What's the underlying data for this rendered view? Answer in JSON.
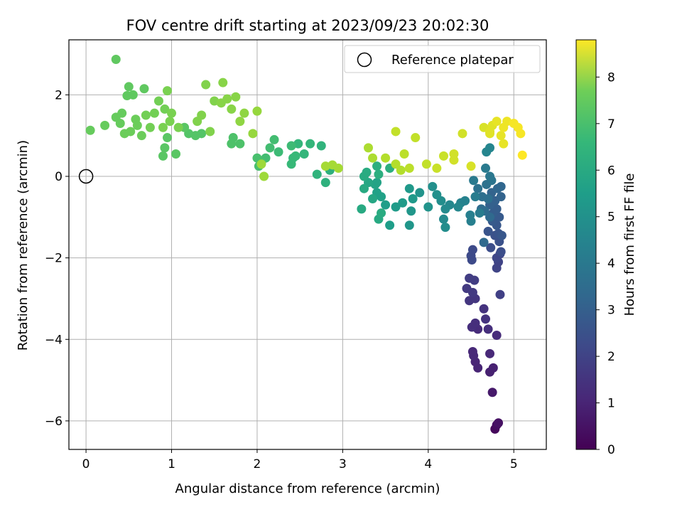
{
  "chart_data": {
    "type": "scatter",
    "title": "FOV centre drift starting at 2023/09/23 20:02:30",
    "xlabel": "Angular distance from reference (arcmin)",
    "ylabel": "Rotation from reference (arcmin)",
    "xlim": [
      -0.2,
      5.38
    ],
    "ylim": [
      -6.7,
      3.35
    ],
    "xticks": [
      0,
      1,
      2,
      3,
      4,
      5
    ],
    "yticks": [
      -6,
      -4,
      -2,
      0,
      2
    ],
    "grid": true,
    "legend": {
      "position": "top-right",
      "entries": [
        "Reference platepar"
      ]
    },
    "reference_point": {
      "x": 0,
      "y": 0,
      "marker": "open-circle"
    },
    "colorbar": {
      "label": "Hours from first FF file",
      "range": [
        0,
        8.8
      ],
      "ticks": [
        0,
        1,
        2,
        3,
        4,
        5,
        6,
        7,
        8
      ],
      "colormap": "viridis"
    },
    "series": [
      {
        "hours_range": [
          0.2,
          2.2
        ],
        "points": [
          [
            4.78,
            -6.2,
            0.2
          ],
          [
            4.8,
            -6.1,
            0.3
          ],
          [
            4.82,
            -6.05,
            0.4
          ],
          [
            4.75,
            -5.3,
            0.6
          ],
          [
            4.72,
            -4.8,
            0.8
          ],
          [
            4.76,
            -4.7,
            0.8
          ],
          [
            4.58,
            -4.7,
            0.9
          ],
          [
            4.55,
            -4.55,
            0.9
          ],
          [
            4.53,
            -4.4,
            1.0
          ],
          [
            4.52,
            -4.3,
            1.0
          ],
          [
            4.72,
            -4.35,
            1.0
          ],
          [
            4.8,
            -3.9,
            1.1
          ],
          [
            4.58,
            -3.75,
            1.1
          ],
          [
            4.7,
            -3.75,
            1.2
          ],
          [
            4.51,
            -3.7,
            1.2
          ],
          [
            4.55,
            -3.6,
            1.2
          ],
          [
            4.67,
            -3.5,
            1.3
          ],
          [
            4.65,
            -3.25,
            1.3
          ],
          [
            4.48,
            -3.05,
            1.4
          ],
          [
            4.55,
            -3.0,
            1.4
          ],
          [
            4.52,
            -2.85,
            1.5
          ],
          [
            4.45,
            -2.75,
            1.5
          ],
          [
            4.48,
            -2.5,
            1.6
          ],
          [
            4.54,
            -2.55,
            1.6
          ],
          [
            4.84,
            -2.9,
            1.7
          ],
          [
            4.8,
            -2.25,
            1.8
          ],
          [
            4.82,
            -2.1,
            1.8
          ],
          [
            4.8,
            -2.0,
            1.9
          ],
          [
            4.84,
            -1.9,
            1.9
          ],
          [
            4.5,
            -1.95,
            2.0
          ],
          [
            4.51,
            -2.05,
            2.0
          ],
          [
            4.52,
            -1.8,
            2.0
          ],
          [
            4.85,
            -1.85,
            2.1
          ],
          [
            4.73,
            -1.75,
            2.1
          ],
          [
            4.83,
            -1.6,
            2.2
          ]
        ]
      },
      {
        "hours_range": [
          2.0,
          4.0
        ],
        "points": [
          [
            4.78,
            -1.45,
            2.2
          ],
          [
            4.82,
            -1.4,
            2.3
          ],
          [
            4.7,
            -1.35,
            2.3
          ],
          [
            4.86,
            -1.45,
            2.4
          ],
          [
            4.8,
            -1.2,
            2.4
          ],
          [
            4.75,
            -1.1,
            2.5
          ],
          [
            4.83,
            -1.0,
            2.5
          ],
          [
            4.76,
            -0.9,
            2.6
          ],
          [
            4.8,
            -0.8,
            2.6
          ],
          [
            4.72,
            -0.7,
            2.7
          ],
          [
            4.78,
            -0.6,
            2.7
          ],
          [
            4.85,
            -0.5,
            2.8
          ],
          [
            4.74,
            -0.4,
            2.8
          ],
          [
            4.81,
            -0.3,
            2.9
          ],
          [
            4.85,
            -0.25,
            2.9
          ],
          [
            4.65,
            -1.62,
            3.0
          ],
          [
            4.72,
            -1.0,
            3.0
          ],
          [
            4.66,
            -0.85,
            3.1
          ],
          [
            4.62,
            -0.8,
            3.1
          ],
          [
            4.7,
            -0.55,
            3.2
          ],
          [
            4.63,
            -0.5,
            3.2
          ],
          [
            4.58,
            -0.3,
            3.3
          ],
          [
            4.68,
            -0.2,
            3.3
          ],
          [
            4.74,
            -0.1,
            3.4
          ],
          [
            4.72,
            0.0,
            3.5
          ],
          [
            4.67,
            0.2,
            3.6
          ],
          [
            4.53,
            -0.1,
            3.6
          ],
          [
            4.55,
            -0.5,
            3.7
          ],
          [
            4.6,
            -0.9,
            3.7
          ],
          [
            4.5,
            -1.1,
            3.8
          ],
          [
            4.49,
            -0.95,
            3.8
          ],
          [
            4.43,
            -0.6,
            3.9
          ],
          [
            4.38,
            -0.65,
            3.9
          ],
          [
            4.68,
            0.6,
            4.0
          ],
          [
            4.72,
            0.7,
            4.0
          ]
        ]
      },
      {
        "hours_range": [
          4.0,
          5.5
        ],
        "points": [
          [
            4.35,
            -0.75,
            4.1
          ],
          [
            4.25,
            -0.7,
            4.1
          ],
          [
            4.2,
            -0.8,
            4.2
          ],
          [
            4.18,
            -1.05,
            4.2
          ],
          [
            4.2,
            -1.25,
            4.3
          ],
          [
            4.15,
            -0.6,
            4.3
          ],
          [
            4.1,
            -0.45,
            4.4
          ],
          [
            4.05,
            -0.25,
            4.4
          ],
          [
            4.0,
            -0.75,
            4.5
          ],
          [
            3.9,
            -0.4,
            4.5
          ],
          [
            3.8,
            -0.85,
            4.6
          ],
          [
            3.78,
            -1.2,
            4.6
          ],
          [
            3.82,
            -0.55,
            4.7
          ],
          [
            3.78,
            -0.3,
            4.7
          ],
          [
            3.7,
            -0.65,
            4.8
          ],
          [
            3.62,
            -0.75,
            4.8
          ],
          [
            3.55,
            -1.2,
            4.9
          ],
          [
            3.5,
            -0.7,
            4.9
          ],
          [
            3.45,
            -0.5,
            5.0
          ],
          [
            3.4,
            -0.4,
            5.0
          ],
          [
            3.4,
            -0.15,
            5.1
          ],
          [
            3.38,
            -0.2,
            5.1
          ],
          [
            3.35,
            -0.55,
            5.2
          ],
          [
            3.3,
            -0.15,
            5.2
          ],
          [
            3.25,
            -0.3,
            5.3
          ],
          [
            3.22,
            -0.8,
            5.3
          ],
          [
            3.42,
            -1.05,
            5.3
          ],
          [
            3.45,
            -0.9,
            5.4
          ],
          [
            3.25,
            0.0,
            5.4
          ],
          [
            3.28,
            0.1,
            5.4
          ],
          [
            3.42,
            0.05,
            5.5
          ],
          [
            3.4,
            0.25,
            5.5
          ],
          [
            3.55,
            0.2,
            5.5
          ]
        ]
      },
      {
        "hours_range": [
          5.5,
          6.5
        ],
        "points": [
          [
            2.85,
            0.15,
            5.6
          ],
          [
            2.8,
            -0.15,
            5.6
          ],
          [
            2.7,
            0.05,
            5.7
          ],
          [
            2.75,
            0.75,
            5.7
          ],
          [
            2.62,
            0.8,
            5.8
          ],
          [
            2.55,
            0.55,
            5.8
          ],
          [
            2.48,
            0.8,
            5.8
          ],
          [
            2.45,
            0.5,
            5.9
          ],
          [
            2.4,
            0.3,
            5.9
          ],
          [
            2.42,
            0.45,
            5.9
          ],
          [
            2.4,
            0.75,
            6.0
          ],
          [
            2.25,
            0.6,
            6.0
          ],
          [
            2.2,
            0.9,
            6.1
          ],
          [
            2.15,
            0.7,
            6.1
          ],
          [
            2.1,
            0.45,
            6.1
          ],
          [
            2.05,
            0.35,
            6.2
          ],
          [
            2.0,
            0.45,
            6.2
          ],
          [
            2.02,
            0.25,
            6.2
          ],
          [
            1.8,
            0.8,
            6.3
          ],
          [
            1.72,
            0.95,
            6.3
          ],
          [
            1.7,
            0.8,
            6.3
          ],
          [
            1.35,
            1.05,
            6.4
          ],
          [
            1.28,
            1.0,
            6.4
          ],
          [
            1.2,
            1.05,
            6.4
          ],
          [
            1.15,
            1.2,
            6.5
          ],
          [
            0.95,
            0.95,
            6.5
          ],
          [
            0.92,
            0.7,
            6.5
          ],
          [
            0.9,
            0.5,
            6.5
          ],
          [
            1.05,
            0.55,
            6.5
          ]
        ]
      },
      {
        "hours_range": [
          6.5,
          7.5
        ],
        "points": [
          [
            0.35,
            2.87,
            6.6
          ],
          [
            0.5,
            2.2,
            6.6
          ],
          [
            0.55,
            2.0,
            6.6
          ],
          [
            0.48,
            1.98,
            6.6
          ],
          [
            0.68,
            2.15,
            6.6
          ],
          [
            0.05,
            1.13,
            6.7
          ],
          [
            0.22,
            1.25,
            6.7
          ],
          [
            0.35,
            1.45,
            6.7
          ],
          [
            0.4,
            1.3,
            6.7
          ],
          [
            0.42,
            1.55,
            6.7
          ],
          [
            0.45,
            1.05,
            6.8
          ],
          [
            0.52,
            1.1,
            6.8
          ],
          [
            0.58,
            1.4,
            6.8
          ],
          [
            0.6,
            1.25,
            6.8
          ],
          [
            0.65,
            1.0,
            6.8
          ],
          [
            0.7,
            1.5,
            6.9
          ],
          [
            0.75,
            1.2,
            6.9
          ],
          [
            0.8,
            1.55,
            6.9
          ],
          [
            0.85,
            1.85,
            6.9
          ],
          [
            0.92,
            1.65,
            6.9
          ],
          [
            0.95,
            2.1,
            7.0
          ],
          [
            0.9,
            1.2,
            7.0
          ],
          [
            0.98,
            1.35,
            7.0
          ],
          [
            1.0,
            1.55,
            7.0
          ],
          [
            1.08,
            1.2,
            7.0
          ],
          [
            1.3,
            1.35,
            7.1
          ],
          [
            1.35,
            1.5,
            7.1
          ],
          [
            1.4,
            2.25,
            7.1
          ],
          [
            1.45,
            1.1,
            7.1
          ],
          [
            1.5,
            1.85,
            7.1
          ],
          [
            1.58,
            1.8,
            7.2
          ],
          [
            1.6,
            2.3,
            7.2
          ],
          [
            1.65,
            1.9,
            7.2
          ],
          [
            1.7,
            1.65,
            7.2
          ],
          [
            1.75,
            1.95,
            7.2
          ]
        ]
      },
      {
        "hours_range": [
          7.5,
          8.8
        ],
        "points": [
          [
            1.8,
            1.35,
            7.3
          ],
          [
            1.85,
            1.55,
            7.3
          ],
          [
            1.95,
            1.05,
            7.4
          ],
          [
            2.0,
            1.6,
            7.4
          ],
          [
            2.05,
            0.3,
            7.5
          ],
          [
            2.08,
            0.0,
            7.5
          ],
          [
            2.8,
            0.25,
            7.6
          ],
          [
            2.88,
            0.28,
            7.6
          ],
          [
            2.95,
            0.2,
            7.6
          ],
          [
            3.3,
            0.7,
            7.7
          ],
          [
            3.35,
            0.45,
            7.7
          ],
          [
            3.5,
            0.45,
            7.8
          ],
          [
            3.62,
            0.3,
            7.8
          ],
          [
            3.68,
            0.15,
            7.8
          ],
          [
            3.72,
            0.55,
            7.9
          ],
          [
            3.78,
            0.2,
            7.9
          ],
          [
            3.85,
            0.95,
            8.0
          ],
          [
            3.98,
            0.3,
            8.0
          ],
          [
            4.1,
            0.2,
            8.1
          ],
          [
            4.18,
            0.5,
            8.1
          ],
          [
            4.3,
            0.4,
            8.2
          ],
          [
            4.4,
            1.05,
            8.2
          ],
          [
            4.5,
            0.25,
            8.3
          ],
          [
            4.65,
            1.2,
            8.3
          ],
          [
            4.72,
            1.1,
            8.4
          ],
          [
            4.75,
            1.25,
            8.4
          ],
          [
            4.8,
            1.35,
            8.5
          ],
          [
            4.85,
            1.0,
            8.5
          ],
          [
            4.88,
            0.8,
            8.5
          ],
          [
            4.88,
            1.2,
            8.6
          ],
          [
            4.92,
            1.35,
            8.6
          ],
          [
            5.0,
            1.3,
            8.7
          ],
          [
            5.05,
            1.2,
            8.7
          ],
          [
            5.08,
            1.05,
            8.7
          ],
          [
            5.1,
            0.52,
            8.8
          ],
          [
            3.62,
            1.1,
            8.0
          ],
          [
            4.3,
            0.55,
            8.2
          ],
          [
            4.72,
            1.05,
            8.4
          ]
        ]
      }
    ]
  }
}
